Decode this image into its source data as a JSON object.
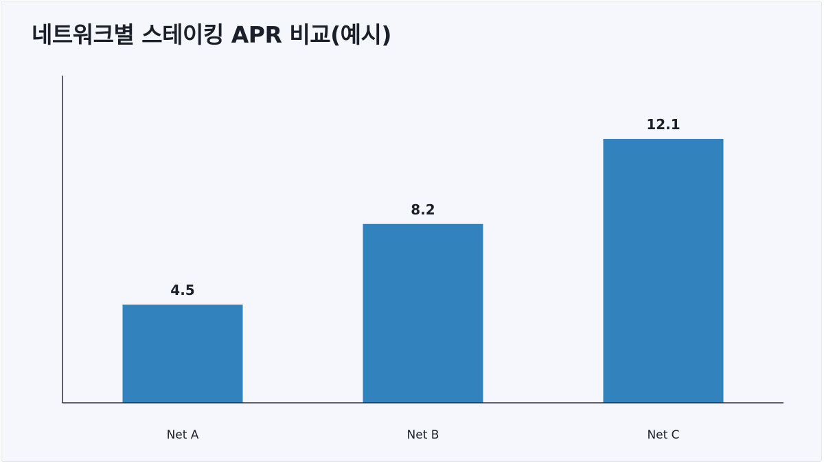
{
  "chart_data": {
    "type": "bar",
    "title": "네트워크별 스테이킹 APR 비교(예시)",
    "categories": [
      "Net A",
      "Net B",
      "Net C"
    ],
    "values": [
      4.5,
      8.2,
      12.1
    ],
    "xlabel": "",
    "ylabel": "",
    "ylim": [
      0,
      15
    ],
    "grid": false,
    "legend": "none",
    "bar_color": "#3282bd",
    "axis_color": "#2a2f3a"
  }
}
